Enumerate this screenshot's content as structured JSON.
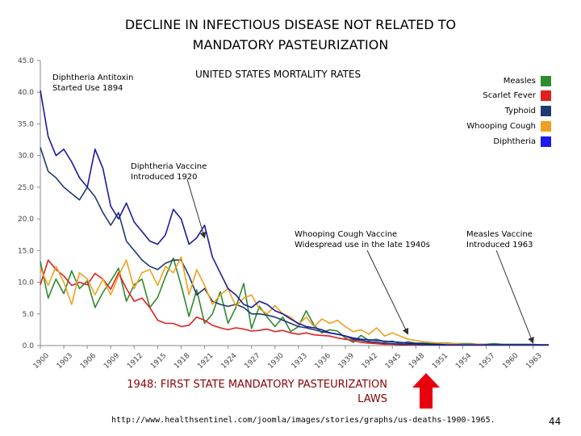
{
  "slide": {
    "title_line1": "DECLINE IN INFECTIOUS DISEASE NOT RELATED TO",
    "title_line2": "MANDATORY PASTEURIZATION",
    "law_line1": "1948: FIRST STATE MANDATORY PASTEURIZATION",
    "law_line2": "LAWS",
    "source_url": "http://www.healthsentinel.com/joomla/images/stories/graphs/us-deaths-1900-1965.",
    "page_number": "44",
    "arrow_color": "#e8000f"
  },
  "chart_data": {
    "type": "line",
    "title": "UNITED STATES MORTALITY RATES",
    "xlabel": "",
    "ylabel": "",
    "xlim": [
      1900,
      1965
    ],
    "ylim": [
      0,
      45
    ],
    "yticks": [
      "0.0",
      "5.0",
      "10.0",
      "15.0",
      "20.0",
      "25.0",
      "30.0",
      "35.0",
      "40.0",
      "45.0"
    ],
    "xticks": [
      "1900",
      "1903",
      "1906",
      "1909",
      "1912",
      "1915",
      "1918",
      "1921",
      "1924",
      "1927",
      "1930",
      "1933",
      "1936",
      "1939",
      "1942",
      "1945",
      "1948",
      "1951",
      "1954",
      "1957",
      "1960",
      "1963"
    ],
    "legend_position": "top-right",
    "grid": false,
    "annotations": [
      {
        "text": "Diphtheria Antitoxin\nStarted Use 1894"
      },
      {
        "text": "Diphtheria Vaccine\nIntroduced 1920",
        "arrow_to": [
          1921,
          17.0
        ]
      },
      {
        "text": "Whooping Cough Vaccine\nWidespread use in the late 1940s",
        "arrow_to": [
          1947,
          1.8
        ]
      },
      {
        "text": "Measles Vaccine\nIntroduced 1963",
        "arrow_to": [
          1963,
          0.4
        ]
      }
    ],
    "series": [
      {
        "name": "Measles",
        "color": "#2e8b2e",
        "x": [
          1900,
          1901,
          1902,
          1903,
          1904,
          1905,
          1906,
          1907,
          1908,
          1909,
          1910,
          1911,
          1912,
          1913,
          1914,
          1915,
          1916,
          1917,
          1918,
          1919,
          1920,
          1921,
          1922,
          1923,
          1924,
          1925,
          1926,
          1927,
          1928,
          1929,
          1930,
          1931,
          1932,
          1933,
          1934,
          1935,
          1936,
          1937,
          1938,
          1939,
          1940,
          1941,
          1942,
          1943,
          1944,
          1945,
          1946,
          1947,
          1948,
          1949,
          1950,
          1951,
          1952,
          1953,
          1954,
          1955,
          1956,
          1957,
          1958,
          1959,
          1960,
          1961,
          1962,
          1963,
          1964,
          1965
        ],
        "values": [
          13.3,
          7.5,
          10.5,
          8.2,
          11.8,
          9.0,
          10.2,
          6.0,
          8.4,
          10.2,
          12.2,
          7.0,
          9.6,
          10.5,
          6.0,
          7.6,
          10.9,
          13.8,
          9.5,
          4.6,
          8.8,
          3.5,
          5.0,
          8.5,
          3.5,
          6.0,
          9.8,
          2.7,
          6.2,
          4.5,
          3.0,
          4.5,
          2.2,
          3.0,
          5.5,
          3.2,
          2.0,
          2.5,
          2.3,
          1.2,
          0.5,
          1.6,
          0.8,
          1.0,
          0.6,
          0.7,
          0.3,
          0.6,
          0.4,
          0.4,
          0.3,
          0.4,
          0.4,
          0.3,
          0.3,
          0.3,
          0.2,
          0.2,
          0.3,
          0.2,
          0.2,
          0.2,
          0.2,
          0.2,
          0.1,
          0.1
        ]
      },
      {
        "name": "Scarlet Fever",
        "color": "#e02020",
        "x": [
          1900,
          1901,
          1902,
          1903,
          1904,
          1905,
          1906,
          1907,
          1908,
          1909,
          1910,
          1911,
          1912,
          1913,
          1914,
          1915,
          1916,
          1917,
          1918,
          1919,
          1920,
          1921,
          1922,
          1923,
          1924,
          1925,
          1926,
          1927,
          1928,
          1929,
          1930,
          1931,
          1932,
          1933,
          1934,
          1935,
          1936,
          1937,
          1938,
          1939,
          1940,
          1941,
          1942,
          1943,
          1944,
          1945,
          1946,
          1947,
          1948,
          1949,
          1950,
          1951,
          1952,
          1953,
          1954,
          1955,
          1956,
          1957,
          1958,
          1959,
          1960,
          1961,
          1962,
          1963,
          1964,
          1965
        ],
        "values": [
          9.6,
          13.5,
          12.0,
          11.0,
          9.5,
          10.0,
          9.6,
          11.4,
          10.5,
          8.9,
          11.5,
          9.0,
          7.0,
          7.5,
          6.0,
          4.0,
          3.5,
          3.5,
          3.0,
          3.2,
          4.5,
          4.0,
          3.2,
          2.8,
          2.5,
          2.8,
          2.6,
          2.3,
          2.4,
          2.6,
          2.2,
          2.4,
          2.0,
          1.8,
          2.0,
          1.7,
          1.6,
          1.5,
          1.2,
          1.0,
          0.8,
          0.5,
          0.4,
          0.3,
          0.2,
          0.2,
          0.1,
          0.1,
          0.1,
          0.1,
          0.1,
          0.1,
          0.1,
          0.1,
          0.1,
          0.1,
          0.1,
          0.1,
          0.1,
          0.1,
          0.1,
          0.1,
          0.1,
          0.1,
          0.1,
          0.1
        ]
      },
      {
        "name": "Typhoid",
        "color": "#1f3a6e",
        "x": [
          1900,
          1901,
          1902,
          1903,
          1904,
          1905,
          1906,
          1907,
          1908,
          1909,
          1910,
          1911,
          1912,
          1913,
          1914,
          1915,
          1916,
          1917,
          1918,
          1919,
          1920,
          1921,
          1922,
          1923,
          1924,
          1925,
          1926,
          1927,
          1928,
          1929,
          1930,
          1931,
          1932,
          1933,
          1934,
          1935,
          1936,
          1937,
          1938,
          1939,
          1940,
          1941,
          1942,
          1943,
          1944,
          1945,
          1946,
          1947,
          1948,
          1949,
          1950,
          1951,
          1952,
          1953,
          1954,
          1955,
          1956,
          1957,
          1958,
          1959,
          1960,
          1961,
          1962,
          1963,
          1964,
          1965
        ],
        "values": [
          31.3,
          27.5,
          26.5,
          25.0,
          24.0,
          23.0,
          25.0,
          23.5,
          21.0,
          19.0,
          21.0,
          16.5,
          15.0,
          13.5,
          12.5,
          12.0,
          13.0,
          13.5,
          13.5,
          11.0,
          8.0,
          9.0,
          7.0,
          6.5,
          6.2,
          6.5,
          6.0,
          5.0,
          5.0,
          4.8,
          4.5,
          4.0,
          3.5,
          3.0,
          2.8,
          2.5,
          2.2,
          2.0,
          1.8,
          1.5,
          1.0,
          0.8,
          0.6,
          0.5,
          0.4,
          0.3,
          0.2,
          0.2,
          0.2,
          0.1,
          0.1,
          0.1,
          0.1,
          0.1,
          0.1,
          0.1,
          0.1,
          0.1,
          0.1,
          0.1,
          0.1,
          0.1,
          0.1,
          0.1,
          0.1,
          0.1
        ]
      },
      {
        "name": "Whooping Cough",
        "color": "#f0a020",
        "x": [
          1900,
          1901,
          1902,
          1903,
          1904,
          1905,
          1906,
          1907,
          1908,
          1909,
          1910,
          1911,
          1912,
          1913,
          1914,
          1915,
          1916,
          1917,
          1918,
          1919,
          1920,
          1921,
          1922,
          1923,
          1924,
          1925,
          1926,
          1927,
          1928,
          1929,
          1930,
          1931,
          1932,
          1933,
          1934,
          1935,
          1936,
          1937,
          1938,
          1939,
          1940,
          1941,
          1942,
          1943,
          1944,
          1945,
          1946,
          1947,
          1948,
          1949,
          1950,
          1951,
          1952,
          1953,
          1954,
          1955,
          1956,
          1957,
          1958,
          1959,
          1960,
          1961,
          1962,
          1963,
          1964,
          1965
        ],
        "values": [
          12.2,
          9.5,
          12.5,
          10.0,
          6.5,
          11.5,
          10.5,
          8.0,
          10.5,
          8.0,
          11.0,
          13.5,
          9.0,
          11.5,
          12.0,
          9.5,
          12.5,
          11.5,
          14.0,
          8.0,
          12.0,
          9.5,
          6.5,
          8.0,
          9.0,
          6.2,
          7.5,
          8.0,
          5.8,
          5.0,
          6.3,
          5.0,
          4.5,
          3.3,
          4.5,
          3.0,
          4.2,
          3.5,
          4.0,
          3.0,
          2.2,
          2.5,
          1.8,
          2.8,
          1.5,
          2.0,
          1.5,
          1.0,
          0.8,
          0.6,
          0.5,
          0.4,
          0.3,
          0.3,
          0.2,
          0.2,
          0.2,
          0.1,
          0.1,
          0.1,
          0.1,
          0.1,
          0.1,
          0.1,
          0.1,
          0.1
        ]
      },
      {
        "name": "Diphtheria",
        "color": "#1a1aa0",
        "x": [
          1900,
          1901,
          1902,
          1903,
          1904,
          1905,
          1906,
          1907,
          1908,
          1909,
          1910,
          1911,
          1912,
          1913,
          1914,
          1915,
          1916,
          1917,
          1918,
          1919,
          1920,
          1921,
          1922,
          1923,
          1924,
          1925,
          1926,
          1927,
          1928,
          1929,
          1930,
          1931,
          1932,
          1933,
          1934,
          1935,
          1936,
          1937,
          1938,
          1939,
          1940,
          1941,
          1942,
          1943,
          1944,
          1945,
          1946,
          1947,
          1948,
          1949,
          1950,
          1951,
          1952,
          1953,
          1954,
          1955,
          1956,
          1957,
          1958,
          1959,
          1960,
          1961,
          1962,
          1963,
          1964,
          1965
        ],
        "values": [
          40.3,
          33.0,
          30.0,
          31.0,
          29.0,
          26.5,
          25.0,
          31.0,
          28.0,
          22.0,
          20.0,
          22.5,
          19.5,
          18.0,
          16.5,
          16.0,
          17.5,
          21.5,
          20.0,
          16.0,
          17.0,
          19.0,
          14.0,
          11.5,
          9.0,
          8.0,
          6.5,
          6.0,
          7.0,
          6.5,
          5.5,
          5.0,
          4.2,
          3.5,
          3.0,
          2.8,
          2.5,
          2.0,
          1.8,
          1.5,
          1.2,
          1.0,
          0.9,
          0.8,
          0.7,
          0.6,
          0.5,
          0.4,
          0.3,
          0.3,
          0.2,
          0.2,
          0.1,
          0.1,
          0.1,
          0.1,
          0.1,
          0.1,
          0.1,
          0.1,
          0.1,
          0.1,
          0.1,
          0.1,
          0.1,
          0.1
        ]
      }
    ]
  }
}
